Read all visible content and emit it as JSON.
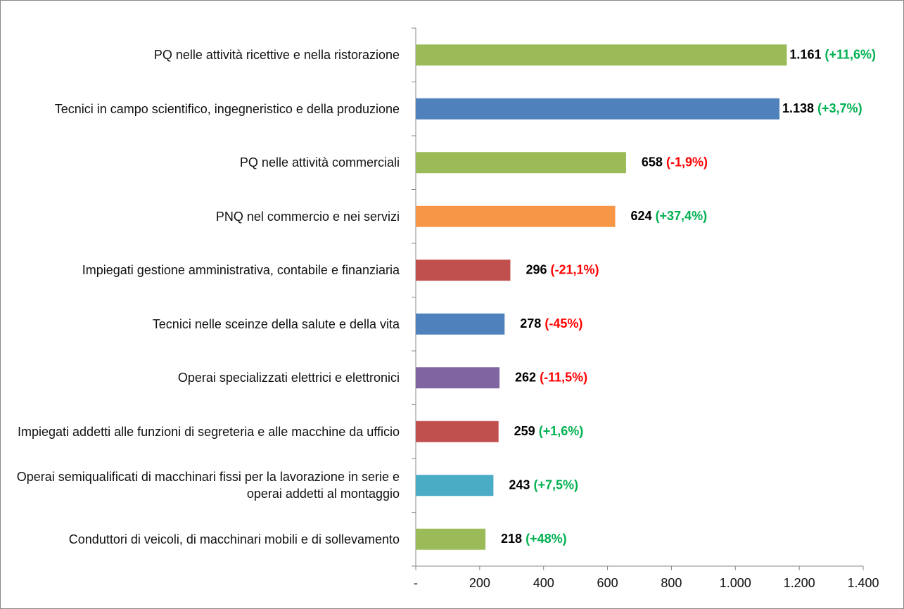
{
  "chart_data": {
    "type": "bar",
    "orientation": "horizontal",
    "categories": [
      "PQ nelle attività ricettive e nella ristorazione",
      "Tecnici in campo scientifico, ingegneristico e della produzione",
      "PQ nelle attività commerciali",
      "PNQ nel commercio e nei servizi",
      "Impiegati gestione amministrativa, contabile e finanziaria",
      "Tecnici nelle sceinze della salute e della vita",
      "Operai specializzati elettrici e elettronici",
      "Impiegati addetti alle funzioni di segreteria e alle macchine da ufficio",
      "Operai semiqualificati di macchinari fissi per la lavorazione in serie e operai addetti al montaggio",
      "Conduttori di veicoli, di macchinari mobili e di sollevamento"
    ],
    "values": [
      1161,
      1138,
      658,
      624,
      296,
      278,
      262,
      259,
      243,
      218
    ],
    "value_labels": [
      "1.161",
      "1.138",
      "658",
      "624",
      "296",
      "278",
      "262",
      "259",
      "243",
      "218"
    ],
    "changes": [
      11.6,
      3.7,
      -1.9,
      37.4,
      -21.1,
      -45,
      -11.5,
      1.6,
      7.5,
      48
    ],
    "change_labels": [
      "(+11,6%)",
      "(+3,7%)",
      "(-1,9%)",
      "(+37,4%)",
      "(-21,1%)",
      "(-45%)",
      "(-11,5%)",
      "(+1,6%)",
      "(+7,5%)",
      "(+48%)"
    ],
    "colors": [
      "#9bbb59",
      "#4f81bd",
      "#9bbb59",
      "#f79646",
      "#c0504d",
      "#4f81bd",
      "#8064a2",
      "#c0504d",
      "#4bacc6",
      "#9bbb59"
    ],
    "positive_color": "#00b050",
    "negative_color": "#ff0000",
    "xlim": [
      0,
      1400
    ],
    "xticks": [
      {
        "value": 0,
        "label": "-"
      },
      200,
      400,
      600,
      800,
      {
        "value": 1000,
        "label": "1.000"
      },
      {
        "value": 1200,
        "label": "1.200"
      },
      {
        "value": 1400,
        "label": "1.400"
      }
    ],
    "grid": false
  }
}
